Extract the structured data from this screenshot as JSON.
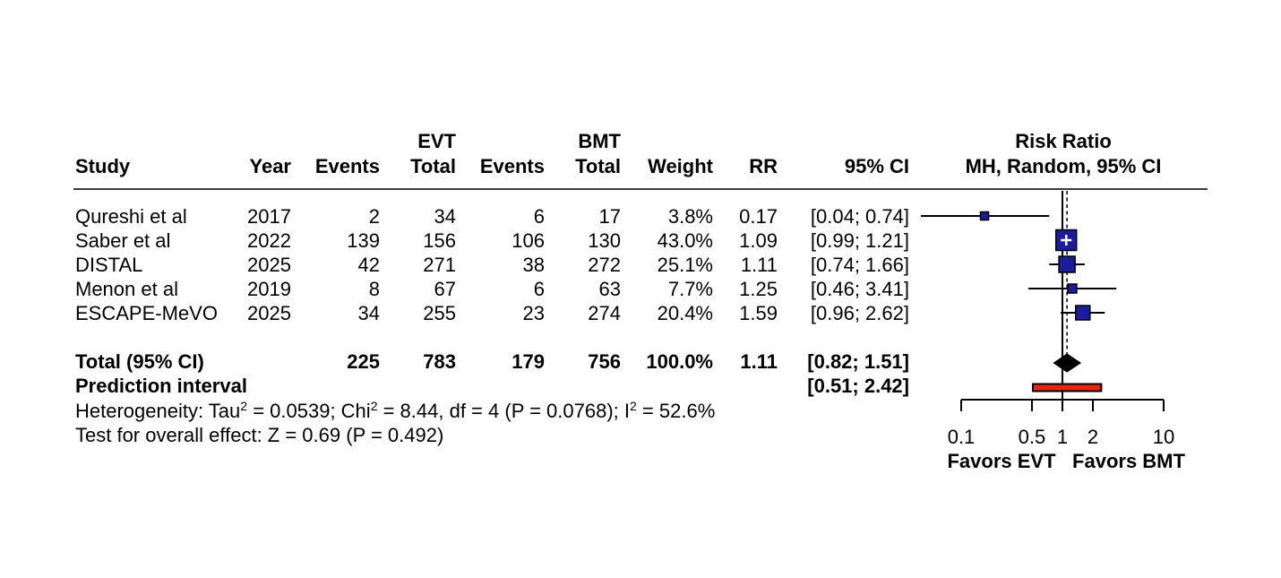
{
  "chart_data": {
    "type": "forest",
    "title": "Risk Ratio",
    "subtitle": "MH, Random, 95% CI",
    "scale": "log10",
    "columns": {
      "study": "Study",
      "year": "Year",
      "events": "Events",
      "total": "Total",
      "group_evt": "EVT",
      "group_bmt": "BMT",
      "weight": "Weight",
      "rr": "RR",
      "ci": "95% CI"
    },
    "studies": [
      {
        "name": "Qureshi et al",
        "slug": "qureshi-et-al",
        "year": "2017",
        "evt_events": "2",
        "evt_total": "34",
        "bmt_events": "6",
        "bmt_total": "17",
        "weight": "3.8%",
        "weight_pct": 3.8,
        "rr": 0.17,
        "rr_text": "0.17",
        "ci_low": 0.04,
        "ci_high": 0.74,
        "ci_text": "[0.04; 0.74]"
      },
      {
        "name": "Saber et al",
        "slug": "saber-et-al",
        "year": "2022",
        "evt_events": "139",
        "evt_total": "156",
        "bmt_events": "106",
        "bmt_total": "130",
        "weight": "43.0%",
        "weight_pct": 43.0,
        "rr": 1.09,
        "rr_text": "1.09",
        "ci_low": 0.99,
        "ci_high": 1.21,
        "ci_text": "[0.99; 1.21]"
      },
      {
        "name": "DISTAL",
        "slug": "distal",
        "year": "2025",
        "evt_events": "42",
        "evt_total": "271",
        "bmt_events": "38",
        "bmt_total": "272",
        "weight": "25.1%",
        "weight_pct": 25.1,
        "rr": 1.11,
        "rr_text": "1.11",
        "ci_low": 0.74,
        "ci_high": 1.66,
        "ci_text": "[0.74; 1.66]"
      },
      {
        "name": "Menon et al",
        "slug": "menon-et-al",
        "year": "2019",
        "evt_events": "8",
        "evt_total": "67",
        "bmt_events": "6",
        "bmt_total": "63",
        "weight": "7.7%",
        "weight_pct": 7.7,
        "rr": 1.25,
        "rr_text": "1.25",
        "ci_low": 0.46,
        "ci_high": 3.41,
        "ci_text": "[0.46; 3.41]"
      },
      {
        "name": "ESCAPE-MeVO",
        "slug": "escape-mevo",
        "year": "2025",
        "evt_events": "34",
        "evt_total": "255",
        "bmt_events": "23",
        "bmt_total": "274",
        "weight": "20.4%",
        "weight_pct": 20.4,
        "rr": 1.59,
        "rr_text": "1.59",
        "ci_low": 0.96,
        "ci_high": 2.62,
        "ci_text": "[0.96; 2.62]"
      }
    ],
    "total": {
      "label": "Total (95% CI)",
      "evt_events": "225",
      "evt_total": "783",
      "bmt_events": "179",
      "bmt_total": "756",
      "weight": "100.0%",
      "rr": 1.11,
      "rr_text": "1.11",
      "ci_low": 0.82,
      "ci_high": 1.51,
      "ci_text": "[0.82; 1.51]"
    },
    "prediction": {
      "label": "Prediction interval",
      "ci_low": 0.51,
      "ci_high": 2.42,
      "ci_text": "[0.51; 2.42]"
    },
    "heterogeneity": {
      "p1": "Heterogeneity: Tau",
      "s1": "2",
      "p2": " = 0.0539; Chi",
      "s2": "2",
      "p3": " = 8.44, df = 4 (P = 0.0768); I",
      "s3": "2",
      "p4": " = 52.6%"
    },
    "overall_test": "Test for overall effect: Z = 0.69 (P = 0.492)",
    "axis": {
      "ref_line": 1,
      "pooled_line": 1.11,
      "ticks": [
        0.1,
        0.5,
        1,
        2,
        10
      ],
      "tick_labels": [
        "0.1",
        "0.5",
        "1",
        "2",
        "10"
      ],
      "left_label": "Favors EVT",
      "right_label": "Favors BMT"
    },
    "colors": {
      "square": "#1C1C9C",
      "square_border": "#000000",
      "diamond": "#000000",
      "prediction_bar": "#EE2412",
      "line": "#000000",
      "rule": "#3d3d3d"
    }
  }
}
